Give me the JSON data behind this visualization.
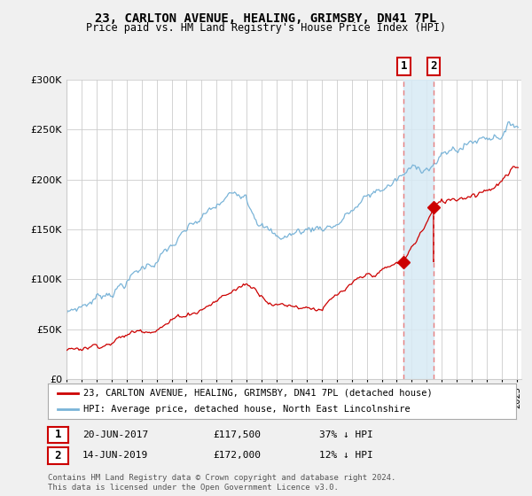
{
  "title": "23, CARLTON AVENUE, HEALING, GRIMSBY, DN41 7PL",
  "subtitle": "Price paid vs. HM Land Registry's House Price Index (HPI)",
  "legend_line1": "23, CARLTON AVENUE, HEALING, GRIMSBY, DN41 7PL (detached house)",
  "legend_line2": "HPI: Average price, detached house, North East Lincolnshire",
  "annotation1_date": "20-JUN-2017",
  "annotation1_price": "£117,500",
  "annotation1_pct": "37% ↓ HPI",
  "annotation2_date": "14-JUN-2019",
  "annotation2_price": "£172,000",
  "annotation2_pct": "12% ↓ HPI",
  "footnote": "Contains HM Land Registry data © Crown copyright and database right 2024.\nThis data is licensed under the Open Government Licence v3.0.",
  "hpi_color": "#7ab4d8",
  "price_color": "#cc0000",
  "vline_color": "#e88080",
  "shade_color": "#d8eaf5",
  "annotation_box_color": "#cc0000",
  "bg_color": "#f0f0f0",
  "plot_bg_color": "#ffffff",
  "grid_color": "#cccccc",
  "ylim": [
    0,
    300000
  ],
  "yticks": [
    0,
    50000,
    100000,
    150000,
    200000,
    250000,
    300000
  ],
  "year_start": 1995,
  "year_end": 2025,
  "sale1_year": 2017.46,
  "sale2_year": 2019.45,
  "sale1_price": 117500,
  "sale2_price": 172000
}
